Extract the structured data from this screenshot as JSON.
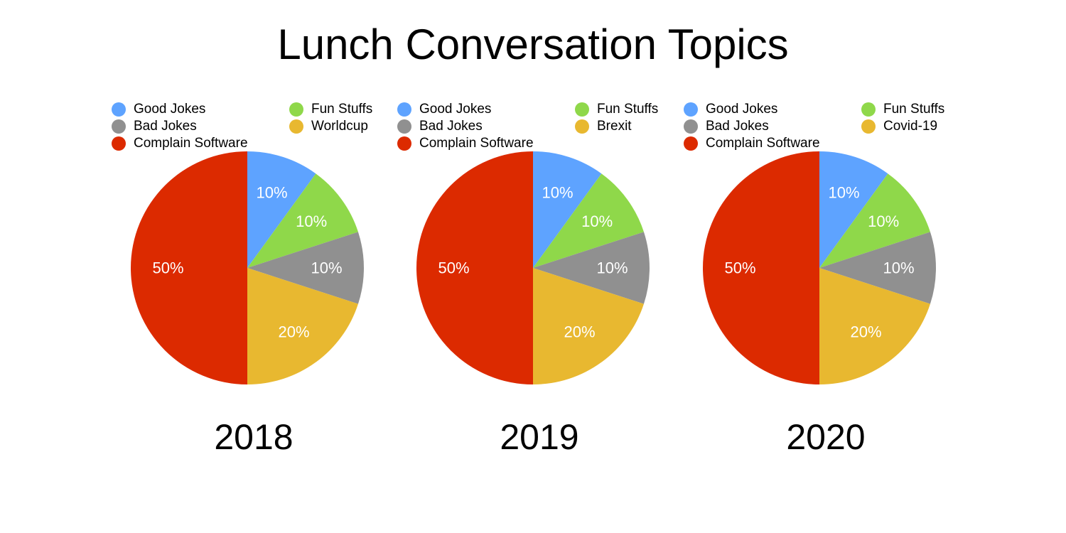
{
  "title": "Lunch Conversation Topics",
  "chart_data": [
    {
      "type": "pie",
      "title": "2018",
      "slices": [
        {
          "label": "Good Jokes",
          "value": 10,
          "display": "10%",
          "color": "#5ea3ff"
        },
        {
          "label": "Fun Stuffs",
          "value": 10,
          "display": "10%",
          "color": "#8fd84a"
        },
        {
          "label": "Bad Jokes",
          "value": 10,
          "display": "10%",
          "color": "#909090"
        },
        {
          "label": "Worldcup",
          "value": 20,
          "display": "20%",
          "color": "#e8b830"
        },
        {
          "label": "Complain Software",
          "value": 50,
          "display": "50%",
          "color": "#dc2a00"
        }
      ],
      "legend_order": [
        0,
        2,
        4,
        1,
        3
      ],
      "legend_placement": "top"
    },
    {
      "type": "pie",
      "title": "2019",
      "slices": [
        {
          "label": "Good Jokes",
          "value": 10,
          "display": "10%",
          "color": "#5ea3ff"
        },
        {
          "label": "Fun Stuffs",
          "value": 10,
          "display": "10%",
          "color": "#8fd84a"
        },
        {
          "label": "Bad Jokes",
          "value": 10,
          "display": "10%",
          "color": "#909090"
        },
        {
          "label": "Brexit",
          "value": 20,
          "display": "20%",
          "color": "#e8b830"
        },
        {
          "label": "Complain Software",
          "value": 50,
          "display": "50%",
          "color": "#dc2a00"
        }
      ],
      "legend_order": [
        0,
        2,
        4,
        1,
        3
      ],
      "legend_placement": "top"
    },
    {
      "type": "pie",
      "title": "2020",
      "slices": [
        {
          "label": "Good Jokes",
          "value": 10,
          "display": "10%",
          "color": "#5ea3ff"
        },
        {
          "label": "Fun Stuffs",
          "value": 10,
          "display": "10%",
          "color": "#8fd84a"
        },
        {
          "label": "Bad Jokes",
          "value": 10,
          "display": "10%",
          "color": "#909090"
        },
        {
          "label": "Covid-19",
          "value": 20,
          "display": "20%",
          "color": "#e8b830"
        },
        {
          "label": "Complain Software",
          "value": 50,
          "display": "50%",
          "color": "#dc2a00"
        }
      ],
      "legend_order": [
        0,
        2,
        4,
        1,
        3
      ],
      "legend_placement": "top"
    }
  ]
}
